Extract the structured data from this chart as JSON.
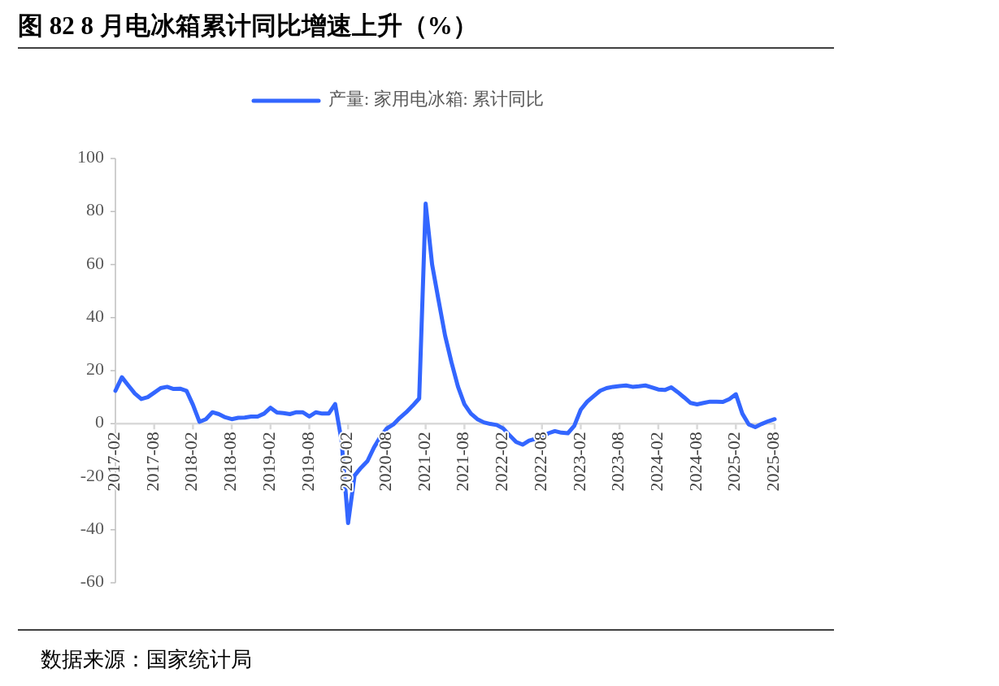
{
  "chart_data": {
    "type": "line",
    "title": "图 82 8 月电冰箱累计同比增速上升（%）",
    "categories": [
      "2017-02",
      null,
      null,
      null,
      null,
      null,
      "2017-08",
      null,
      null,
      null,
      null,
      null,
      "2018-02",
      null,
      null,
      null,
      null,
      null,
      "2018-08",
      null,
      null,
      null,
      null,
      null,
      "2019-02",
      null,
      null,
      null,
      null,
      null,
      "2019-08",
      null,
      null,
      null,
      null,
      null,
      "2020-02",
      null,
      null,
      null,
      null,
      null,
      "2020-08",
      null,
      null,
      null,
      null,
      null,
      "2021-02",
      null,
      null,
      null,
      null,
      null,
      "2021-08",
      null,
      null,
      null,
      null,
      null,
      "2022-02",
      null,
      null,
      null,
      null,
      null,
      "2022-08",
      null,
      null,
      null,
      null,
      null,
      "2023-02",
      null,
      null,
      null,
      null,
      null,
      "2023-08",
      null,
      null,
      null,
      null,
      null,
      "2024-02",
      null,
      null,
      null,
      null,
      null,
      "2024-08",
      null,
      null,
      null,
      null,
      null,
      "2025-02",
      null,
      null,
      null,
      null,
      null,
      "2025-08"
    ],
    "series": [
      {
        "name": "产量: 家用电冰箱: 累计同比",
        "color": "#3366ff",
        "values": [
          12.4,
          17.5,
          14.4,
          11.4,
          9.3,
          10.0,
          11.7,
          13.4,
          13.9,
          13.1,
          13.2,
          12.4,
          7.1,
          0.7,
          1.7,
          4.3,
          3.6,
          2.4,
          1.7,
          2.2,
          2.3,
          2.7,
          2.7,
          3.8,
          6.0,
          4.2,
          4.0,
          3.6,
          4.3,
          4.3,
          2.7,
          4.3,
          3.8,
          3.8,
          7.4,
          -6.6,
          -37.5,
          -19.6,
          -16.6,
          -14.1,
          -9.0,
          -4.9,
          -1.8,
          -0.3,
          2.2,
          4.3,
          6.8,
          9.5,
          83,
          60,
          46.5,
          33.3,
          23.1,
          14,
          7.3,
          3.8,
          1.7,
          0.5,
          -0.1,
          -0.5,
          -1.8,
          -4.4,
          -6.9,
          -7.9,
          -6.4,
          -5.7,
          -5.3,
          -3.6,
          -2.8,
          -3.4,
          -3.6,
          -0.8,
          5.3,
          8.3,
          10.4,
          12.4,
          13.4,
          13.9,
          14.2,
          14.4,
          13.9,
          14.1,
          14.4,
          13.7,
          12.9,
          12.7,
          13.7,
          11.9,
          9.9,
          7.8,
          7.3,
          7.8,
          8.3,
          8.3,
          8.2,
          9.3,
          11.1,
          3.8,
          -0.3,
          -1.3,
          -0.1,
          0.9,
          1.7
        ]
      }
    ],
    "ylim": [
      -60,
      100
    ],
    "yticks": [
      -60,
      -40,
      -20,
      0,
      20,
      40,
      60,
      80,
      100
    ],
    "grid": false,
    "legend": "top",
    "line_style": "solid",
    "marker": "none",
    "annotations": [
      "数据来源：国家统计局"
    ]
  }
}
